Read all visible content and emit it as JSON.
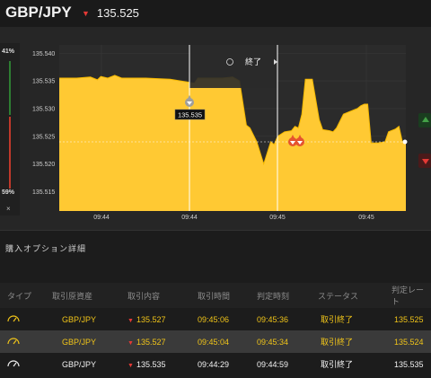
{
  "header": {
    "pair": "GBP/JPY",
    "price": "135.525"
  },
  "chart": {
    "left_pct_top": "41%",
    "left_pct_bottom": "59%",
    "close_label": "×",
    "end_label": "終了",
    "current_tag": "135.535",
    "y_ticks": [
      "135.540",
      "135.535",
      "135.530",
      "135.525",
      "135.520",
      "135.515"
    ],
    "x_ticks": [
      "09:44",
      "09:44",
      "09:45",
      "09:45"
    ],
    "colors": {
      "fill": "#ffc933",
      "line": "#f5b800",
      "up": "#2e7d32",
      "down": "#e53935"
    }
  },
  "chart_data": {
    "type": "area",
    "ylim": [
      135.5115,
      135.5415
    ],
    "xlim": [
      0,
      100
    ],
    "y_ticks": [
      135.54,
      135.535,
      135.53,
      135.525,
      135.52,
      135.515
    ],
    "x": [
      0,
      5,
      9,
      11,
      12,
      14,
      16,
      18,
      21,
      25,
      32,
      39,
      40,
      43,
      45,
      47,
      50,
      52,
      54,
      55,
      57,
      59,
      61,
      62,
      63,
      65,
      67,
      68,
      69,
      70,
      71,
      73,
      75,
      76,
      78,
      79,
      80,
      82,
      84,
      86,
      87,
      88,
      89,
      90,
      92,
      94,
      95,
      97,
      98,
      99,
      100
    ],
    "values": [
      135.5355,
      135.5355,
      135.5357,
      135.5352,
      135.5358,
      135.5355,
      135.536,
      135.5355,
      135.5355,
      135.5355,
      135.5353,
      135.5346,
      135.5355,
      135.5355,
      135.5355,
      135.5355,
      135.5357,
      135.535,
      135.527,
      135.5265,
      135.524,
      135.52,
      135.524,
      135.5235,
      135.525,
      135.5258,
      135.526,
      135.5268,
      135.5265,
      135.529,
      135.5353,
      135.5353,
      135.528,
      135.5262,
      135.526,
      135.5258,
      135.5265,
      135.529,
      135.5295,
      135.53,
      135.5305,
      135.5308,
      135.5308,
      135.5238,
      135.5238,
      135.524,
      135.5258,
      135.5263,
      135.5268,
      135.524,
      135.524
    ],
    "grid": true
  },
  "table": {
    "title": "購入オプション詳細",
    "columns": [
      "タイプ",
      "取引原資産",
      "取引内容",
      "取引時間",
      "判定時刻",
      "ステータス",
      "判定レート"
    ],
    "rows": [
      {
        "type_icon": "gauge-icon",
        "asset": "GBP/JPY",
        "content": "135.527",
        "time": "09:45:06",
        "judge": "09:45:36",
        "status": "取引終了",
        "rate": "135.525"
      },
      {
        "type_icon": "gauge-icon",
        "asset": "GBP/JPY",
        "content": "135.527",
        "time": "09:45:04",
        "judge": "09:45:34",
        "status": "取引終了",
        "rate": "135.524"
      },
      {
        "type_icon": "gauge-icon",
        "asset": "GBP/JPY",
        "content": "135.535",
        "time": "09:44:29",
        "judge": "09:44:59",
        "status": "取引終了",
        "rate": "135.535"
      }
    ]
  }
}
